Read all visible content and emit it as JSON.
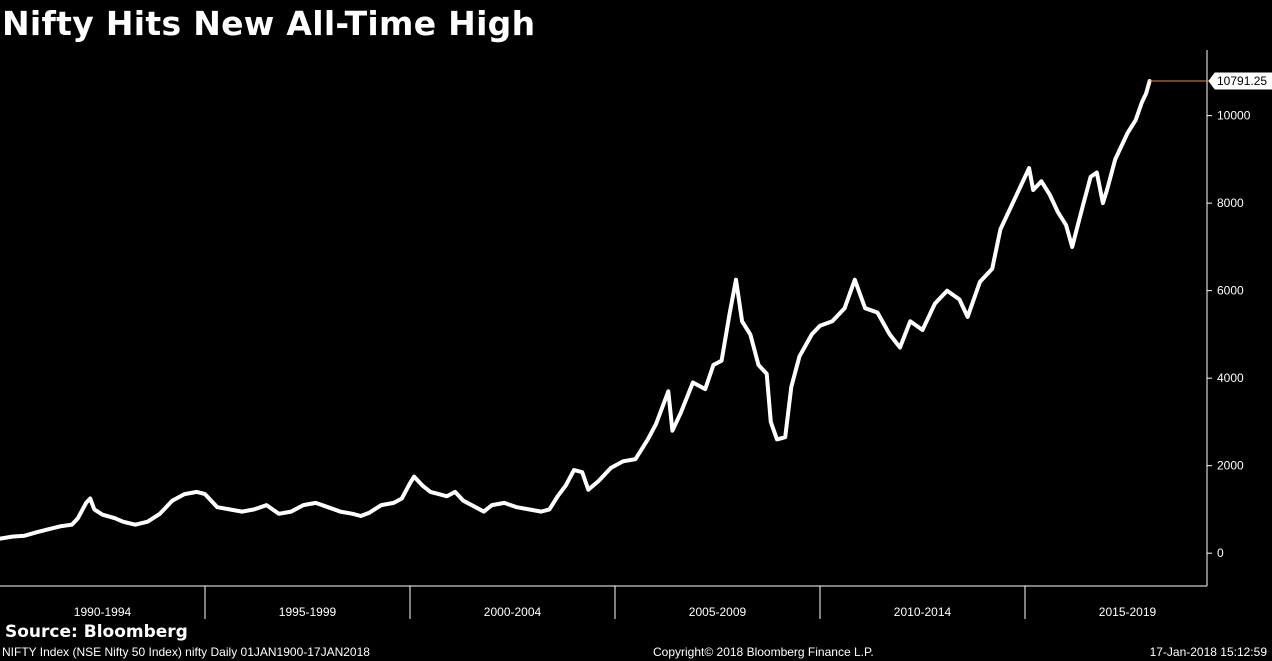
{
  "title": "Nifty Hits New All-Time High",
  "source": "Source: Bloomberg",
  "footer": {
    "left": "NIFTY Index (NSE Nifty 50 Index) nifty  Daily 01JAN1900-17JAN2018",
    "center": "Copyright© 2018 Bloomberg Finance L.P.",
    "right": "17-Jan-2018 15:12:59"
  },
  "colors": {
    "background": "#000000",
    "line": "#ffffff",
    "last_marker": "#e8893a"
  },
  "chart_data": {
    "type": "line",
    "title": "Nifty Hits New All-Time High",
    "xlabel": "",
    "ylabel": "",
    "x_periods": [
      "1990-1994",
      "1995-1999",
      "2000-2004",
      "2005-2009",
      "2010-2014",
      "2015-2019"
    ],
    "y_ticks": [
      0,
      2000,
      4000,
      6000,
      8000,
      10000
    ],
    "ylim": [
      -750,
      11500
    ],
    "xlim": [
      1990,
      2020
    ],
    "y_axis_side": "right",
    "grid": false,
    "last_value": 10791.25,
    "last_value_label": "10791.25",
    "series": [
      {
        "values": [
          [
            1990.0,
            330
          ],
          [
            1990.3,
            380
          ],
          [
            1990.6,
            400
          ],
          [
            1990.9,
            480
          ],
          [
            1991.2,
            550
          ],
          [
            1991.5,
            620
          ],
          [
            1991.75,
            650
          ],
          [
            1991.9,
            800
          ],
          [
            1992.1,
            1150
          ],
          [
            1992.2,
            1250
          ],
          [
            1992.3,
            1000
          ],
          [
            1992.5,
            880
          ],
          [
            1992.8,
            800
          ],
          [
            1993.0,
            720
          ],
          [
            1993.3,
            650
          ],
          [
            1993.6,
            720
          ],
          [
            1993.9,
            900
          ],
          [
            1994.2,
            1200
          ],
          [
            1994.5,
            1350
          ],
          [
            1994.8,
            1400
          ],
          [
            1995.0,
            1350
          ],
          [
            1995.3,
            1050
          ],
          [
            1995.6,
            1000
          ],
          [
            1995.9,
            950
          ],
          [
            1996.2,
            1000
          ],
          [
            1996.5,
            1100
          ],
          [
            1996.8,
            900
          ],
          [
            1997.1,
            950
          ],
          [
            1997.4,
            1100
          ],
          [
            1997.7,
            1150
          ],
          [
            1998.0,
            1050
          ],
          [
            1998.3,
            950
          ],
          [
            1998.6,
            900
          ],
          [
            1998.8,
            850
          ],
          [
            1999.0,
            920
          ],
          [
            1999.3,
            1100
          ],
          [
            1999.6,
            1150
          ],
          [
            1999.8,
            1250
          ],
          [
            2000.0,
            1600
          ],
          [
            2000.1,
            1750
          ],
          [
            2000.3,
            1550
          ],
          [
            2000.5,
            1400
          ],
          [
            2000.7,
            1350
          ],
          [
            2000.9,
            1300
          ],
          [
            2001.1,
            1400
          ],
          [
            2001.3,
            1200
          ],
          [
            2001.6,
            1050
          ],
          [
            2001.8,
            950
          ],
          [
            2002.0,
            1100
          ],
          [
            2002.3,
            1150
          ],
          [
            2002.6,
            1050
          ],
          [
            2002.9,
            1000
          ],
          [
            2003.2,
            950
          ],
          [
            2003.4,
            1000
          ],
          [
            2003.6,
            1300
          ],
          [
            2003.8,
            1550
          ],
          [
            2004.0,
            1900
          ],
          [
            2004.2,
            1850
          ],
          [
            2004.35,
            1450
          ],
          [
            2004.6,
            1650
          ],
          [
            2004.9,
            1950
          ],
          [
            2005.2,
            2100
          ],
          [
            2005.5,
            2150
          ],
          [
            2005.8,
            2600
          ],
          [
            2006.0,
            2950
          ],
          [
            2006.3,
            3700
          ],
          [
            2006.4,
            2800
          ],
          [
            2006.6,
            3200
          ],
          [
            2006.9,
            3900
          ],
          [
            2007.2,
            3750
          ],
          [
            2007.4,
            4300
          ],
          [
            2007.6,
            4400
          ],
          [
            2007.8,
            5500
          ],
          [
            2007.95,
            6250
          ],
          [
            2008.1,
            5300
          ],
          [
            2008.3,
            5000
          ],
          [
            2008.5,
            4300
          ],
          [
            2008.7,
            4100
          ],
          [
            2008.8,
            3000
          ],
          [
            2008.95,
            2600
          ],
          [
            2009.15,
            2650
          ],
          [
            2009.3,
            3800
          ],
          [
            2009.5,
            4500
          ],
          [
            2009.8,
            5000
          ],
          [
            2010.0,
            5200
          ],
          [
            2010.3,
            5300
          ],
          [
            2010.6,
            5600
          ],
          [
            2010.85,
            6250
          ],
          [
            2011.1,
            5600
          ],
          [
            2011.4,
            5500
          ],
          [
            2011.7,
            5000
          ],
          [
            2011.95,
            4700
          ],
          [
            2012.2,
            5300
          ],
          [
            2012.5,
            5100
          ],
          [
            2012.8,
            5700
          ],
          [
            2013.1,
            6000
          ],
          [
            2013.4,
            5800
          ],
          [
            2013.6,
            5400
          ],
          [
            2013.9,
            6200
          ],
          [
            2014.2,
            6500
          ],
          [
            2014.4,
            7400
          ],
          [
            2014.6,
            7800
          ],
          [
            2014.9,
            8400
          ],
          [
            2015.1,
            8800
          ],
          [
            2015.2,
            8300
          ],
          [
            2015.4,
            8500
          ],
          [
            2015.6,
            8200
          ],
          [
            2015.8,
            7800
          ],
          [
            2016.0,
            7500
          ],
          [
            2016.15,
            7000
          ],
          [
            2016.4,
            7900
          ],
          [
            2016.6,
            8600
          ],
          [
            2016.75,
            8700
          ],
          [
            2016.9,
            8000
          ],
          [
            2017.0,
            8300
          ],
          [
            2017.2,
            9000
          ],
          [
            2017.5,
            9600
          ],
          [
            2017.7,
            9900
          ],
          [
            2017.85,
            10300
          ],
          [
            2017.95,
            10500
          ],
          [
            2018.04,
            10791.25
          ]
        ]
      }
    ]
  }
}
